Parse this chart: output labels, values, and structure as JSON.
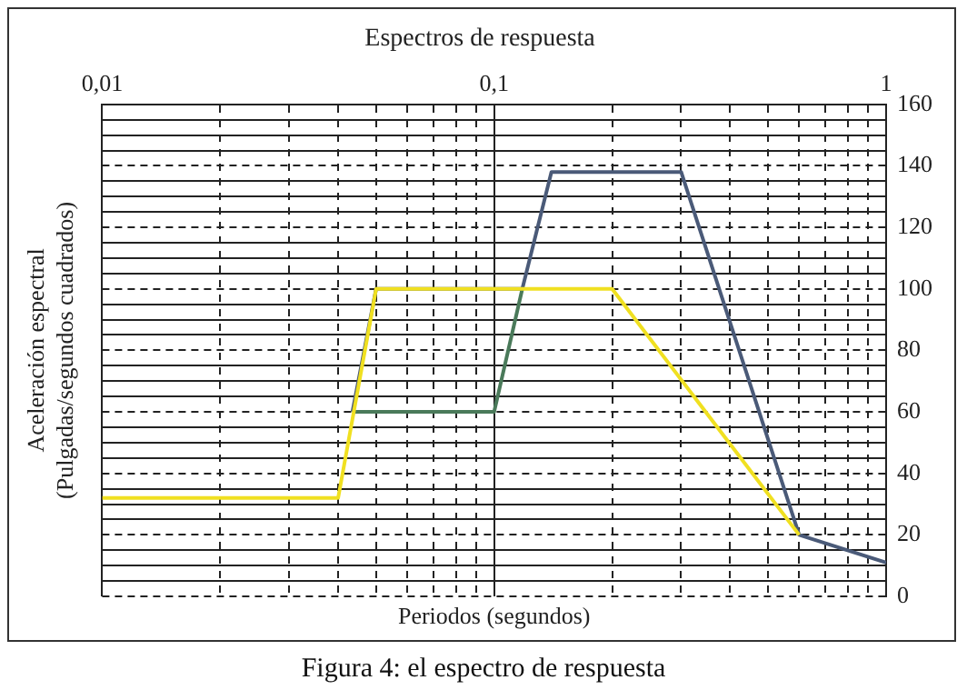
{
  "chart_data": {
    "type": "line",
    "title": "Espectros de respuesta",
    "xlabel": "Periodos (segundos)",
    "ylabel": "Aceleración espectral\n(Pulgadas/segundos cuadrados)",
    "log": "x",
    "grid": true,
    "marker": "none",
    "line_style": "solid",
    "annotations": [
      "Figura 4: el espectro de respuesta"
    ],
    "xlim": [
      0.01,
      1
    ],
    "ylim": [
      0,
      160
    ],
    "xticks": [
      {
        "value": 0.01,
        "label": "0,01"
      },
      {
        "value": 0.02,
        "label": null
      },
      {
        "value": 0.03,
        "label": null
      },
      {
        "value": 0.04,
        "label": null
      },
      {
        "value": 0.05,
        "label": null
      },
      {
        "value": 0.06,
        "label": null
      },
      {
        "value": 0.07,
        "label": null
      },
      {
        "value": 0.08,
        "label": null
      },
      {
        "value": 0.09,
        "label": null
      },
      {
        "value": 0.1,
        "label": "0,1"
      },
      {
        "value": 0.2,
        "label": null
      },
      {
        "value": 0.3,
        "label": null
      },
      {
        "value": 0.4,
        "label": null
      },
      {
        "value": 0.5,
        "label": null
      },
      {
        "value": 0.6,
        "label": null
      },
      {
        "value": 0.7,
        "label": null
      },
      {
        "value": 0.8,
        "label": null
      },
      {
        "value": 0.9,
        "label": null
      },
      1
    ],
    "yticks": [
      0,
      {
        "value": 5,
        "label": null
      },
      {
        "value": 10,
        "label": null
      },
      {
        "value": 15,
        "label": null
      },
      20,
      {
        "value": 25,
        "label": null
      },
      {
        "value": 30,
        "label": null
      },
      {
        "value": 35,
        "label": null
      },
      40,
      {
        "value": 45,
        "label": null
      },
      {
        "value": 50,
        "label": null
      },
      {
        "value": 55,
        "label": null
      },
      60,
      {
        "value": 65,
        "label": null
      },
      {
        "value": 70,
        "label": null
      },
      {
        "value": 75,
        "label": null
      },
      80,
      {
        "value": 85,
        "label": null
      },
      {
        "value": 90,
        "label": null
      },
      {
        "value": 95,
        "label": null
      },
      100,
      {
        "value": 105,
        "label": null
      },
      {
        "value": 110,
        "label": null
      },
      {
        "value": 115,
        "label": null
      },
      120,
      {
        "value": 125,
        "label": null
      },
      {
        "value": 130,
        "label": null
      },
      {
        "value": 135,
        "label": null
      },
      140,
      {
        "value": 145,
        "label": null
      },
      {
        "value": 150,
        "label": null
      },
      {
        "value": 155,
        "label": null
      },
      160
    ],
    "series": [
      {
        "color": "#f0e020",
        "x": [
          0.01,
          0.04,
          0.05,
          0.2,
          0.6
        ],
        "values": [
          32,
          32,
          100,
          100,
          20
        ]
      },
      {
        "color": "#4a7a5a",
        "x": [
          0.044,
          0.1,
          0.118
        ],
        "values": [
          60,
          60,
          100
        ]
      },
      {
        "color": "#4a5a78",
        "x": [
          0.0435,
          0.05,
          0.118,
          0.14,
          0.3,
          0.6,
          1
        ],
        "values": [
          60,
          100,
          100,
          138,
          138,
          20,
          11
        ]
      }
    ]
  }
}
